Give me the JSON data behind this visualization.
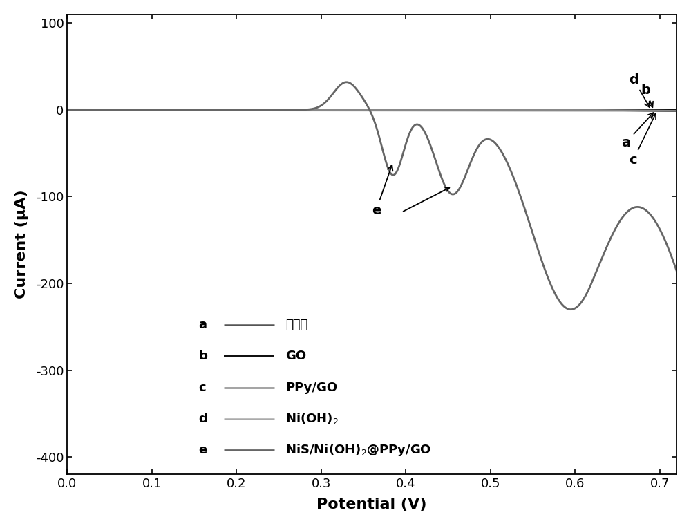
{
  "xlim": [
    0.0,
    0.72
  ],
  "ylim": [
    -420,
    110
  ],
  "xlabel": "Potential (V)",
  "ylabel": "Current (μA)",
  "xticks": [
    0.0,
    0.1,
    0.2,
    0.3,
    0.4,
    0.5,
    0.6,
    0.7
  ],
  "yticks": [
    100,
    0,
    -100,
    -200,
    -300,
    -400
  ],
  "colors": {
    "a": "#555555",
    "b": "#111111",
    "c": "#888888",
    "d": "#aaaaaa",
    "e": "#666666"
  },
  "linewidths": {
    "a": 1.8,
    "b": 2.8,
    "c": 1.8,
    "d": 1.8,
    "e": 2.0
  },
  "bg_color": "#ffffff",
  "axis_fontsize": 16,
  "tick_fontsize": 13,
  "legend_fontsize": 13,
  "annotation_fontsize": 14
}
